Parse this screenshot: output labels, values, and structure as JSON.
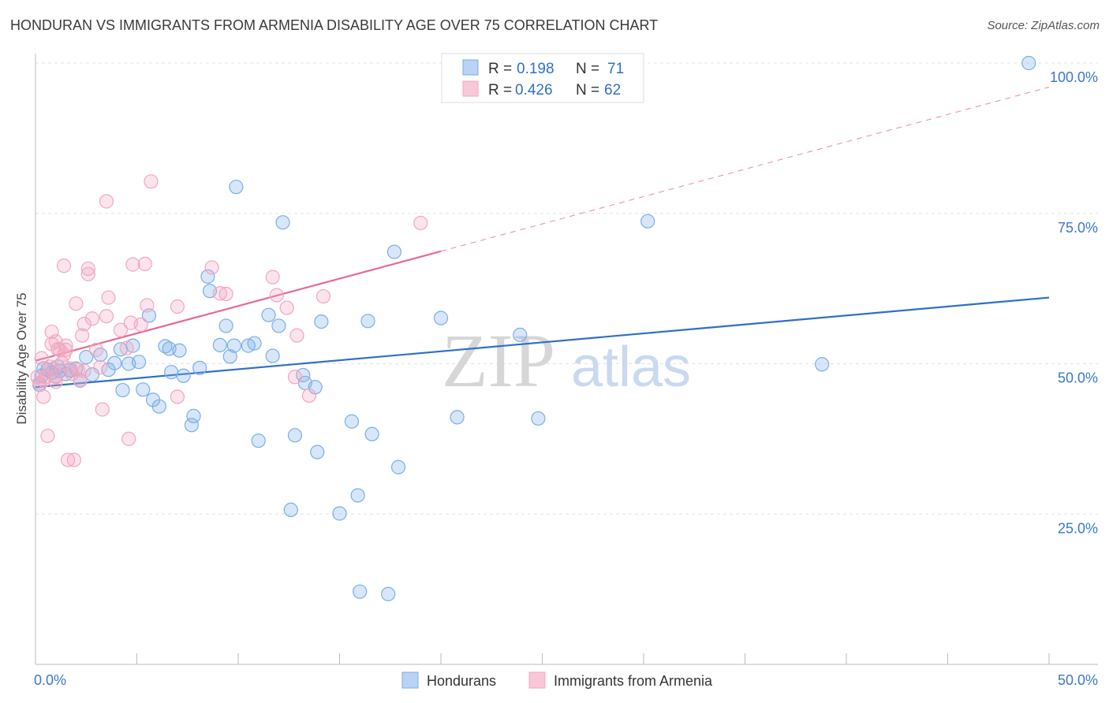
{
  "title": "HONDURAN VS IMMIGRANTS FROM ARMENIA DISABILITY AGE OVER 75 CORRELATION CHART",
  "source": "Source: ZipAtlas.com",
  "watermark": {
    "zip": "ZIP",
    "atlas": "atlas"
  },
  "stats": [
    {
      "r_label": "R =",
      "r_value": "0.198",
      "n_label": "N =",
      "n_value": "71"
    },
    {
      "r_label": "R =",
      "r_value": "0.426",
      "n_label": "N =",
      "n_value": "62"
    }
  ],
  "chart_data": {
    "type": "scatter",
    "ylabel": "Disability Age Over 75",
    "x_tick_labels": [
      "0.0%",
      "50.0%"
    ],
    "y_tick_labels": [
      "25.0%",
      "50.0%",
      "75.0%",
      "100.0%"
    ],
    "xlim": [
      0,
      50
    ],
    "ylim": [
      0,
      102
    ],
    "grid": true,
    "legend_position": "bottom",
    "series": [
      {
        "name": "Hondurans",
        "color": "#7aaee8",
        "line_color": "#2f6fc9",
        "trend": {
          "x": [
            0,
            50
          ],
          "y": [
            46.1,
            61.0
          ],
          "dashed_to": null
        },
        "points": [
          [
            0.2,
            46.5
          ],
          [
            0.3,
            48.0
          ],
          [
            0.4,
            49.2
          ],
          [
            0.6,
            49.0
          ],
          [
            0.8,
            48.5
          ],
          [
            1.0,
            47.9
          ],
          [
            1.1,
            49.5
          ],
          [
            1.2,
            48.8
          ],
          [
            1.5,
            48.3
          ],
          [
            1.7,
            48.9
          ],
          [
            2.0,
            49.2
          ],
          [
            2.2,
            47.2
          ],
          [
            2.5,
            51.1
          ],
          [
            2.8,
            48.2
          ],
          [
            3.2,
            51.5
          ],
          [
            3.6,
            49.0
          ],
          [
            3.9,
            50.1
          ],
          [
            4.2,
            52.4
          ],
          [
            4.3,
            45.6
          ],
          [
            4.6,
            50.0
          ],
          [
            4.8,
            53.0
          ],
          [
            5.1,
            50.3
          ],
          [
            5.3,
            45.7
          ],
          [
            5.6,
            58.0
          ],
          [
            5.8,
            44.0
          ],
          [
            6.1,
            42.9
          ],
          [
            6.4,
            52.9
          ],
          [
            6.6,
            52.5
          ],
          [
            6.7,
            48.6
          ],
          [
            7.1,
            52.2
          ],
          [
            7.3,
            48.0
          ],
          [
            7.7,
            39.8
          ],
          [
            7.8,
            41.3
          ],
          [
            8.1,
            49.3
          ],
          [
            8.5,
            64.5
          ],
          [
            8.6,
            62.1
          ],
          [
            9.1,
            53.1
          ],
          [
            9.4,
            56.3
          ],
          [
            9.6,
            51.2
          ],
          [
            9.8,
            53.0
          ],
          [
            9.9,
            79.4
          ],
          [
            10.5,
            53.0
          ],
          [
            10.8,
            53.4
          ],
          [
            11.0,
            37.2
          ],
          [
            11.5,
            58.1
          ],
          [
            11.7,
            51.3
          ],
          [
            12.0,
            56.3
          ],
          [
            12.2,
            73.5
          ],
          [
            12.6,
            25.7
          ],
          [
            12.8,
            38.1
          ],
          [
            13.2,
            48.1
          ],
          [
            13.3,
            46.8
          ],
          [
            13.8,
            46.1
          ],
          [
            13.9,
            35.3
          ],
          [
            14.1,
            57.0
          ],
          [
            15.0,
            25.1
          ],
          [
            15.6,
            40.4
          ],
          [
            15.9,
            28.1
          ],
          [
            16.0,
            12.1
          ],
          [
            16.4,
            57.1
          ],
          [
            16.6,
            38.3
          ],
          [
            17.4,
            11.7
          ],
          [
            17.7,
            68.6
          ],
          [
            17.9,
            32.8
          ],
          [
            20.0,
            57.6
          ],
          [
            20.8,
            41.1
          ],
          [
            23.9,
            54.8
          ],
          [
            24.8,
            40.9
          ],
          [
            30.2,
            73.7
          ],
          [
            38.8,
            49.9
          ],
          [
            49.0,
            100.0
          ]
        ]
      },
      {
        "name": "Immigrants from Armenia",
        "color": "#f3a6bf",
        "line_color": "#e56a92",
        "trend": {
          "x": [
            0,
            20
          ],
          "y": [
            50.5,
            68.7
          ],
          "dashed_to": [
            50,
            96.0
          ]
        },
        "points": [
          [
            0.1,
            47.8
          ],
          [
            0.2,
            46.8
          ],
          [
            0.3,
            50.9
          ],
          [
            0.4,
            44.5
          ],
          [
            0.5,
            47.8
          ],
          [
            0.6,
            38.0
          ],
          [
            0.7,
            49.5
          ],
          [
            0.8,
            55.3
          ],
          [
            0.8,
            53.3
          ],
          [
            0.9,
            49.2
          ],
          [
            1.0,
            47.8
          ],
          [
            1.0,
            47.0
          ],
          [
            1.0,
            53.7
          ],
          [
            1.1,
            52.4
          ],
          [
            1.2,
            52.3
          ],
          [
            1.3,
            50.1
          ],
          [
            1.4,
            66.3
          ],
          [
            1.4,
            51.5
          ],
          [
            1.5,
            52.3
          ],
          [
            1.5,
            53.0
          ],
          [
            1.6,
            34.0
          ],
          [
            1.7,
            49.2
          ],
          [
            1.9,
            34.0
          ],
          [
            2.0,
            60.0
          ],
          [
            2.1,
            49.0
          ],
          [
            2.2,
            47.3
          ],
          [
            2.3,
            54.7
          ],
          [
            2.4,
            56.6
          ],
          [
            2.6,
            65.8
          ],
          [
            2.6,
            64.9
          ],
          [
            2.8,
            57.5
          ],
          [
            3.0,
            52.3
          ],
          [
            3.2,
            49.4
          ],
          [
            3.3,
            42.4
          ],
          [
            3.5,
            57.9
          ],
          [
            3.5,
            77.0
          ],
          [
            3.6,
            61.0
          ],
          [
            4.2,
            55.6
          ],
          [
            4.5,
            52.6
          ],
          [
            4.6,
            37.5
          ],
          [
            4.7,
            56.8
          ],
          [
            4.8,
            66.5
          ],
          [
            5.2,
            56.5
          ],
          [
            5.4,
            66.6
          ],
          [
            5.5,
            59.7
          ],
          [
            5.7,
            80.3
          ],
          [
            7.0,
            59.5
          ],
          [
            7.0,
            44.5
          ],
          [
            8.7,
            66.0
          ],
          [
            9.1,
            61.7
          ],
          [
            9.4,
            61.6
          ],
          [
            11.7,
            64.4
          ],
          [
            11.9,
            61.4
          ],
          [
            12.4,
            59.3
          ],
          [
            12.9,
            54.7
          ],
          [
            13.5,
            44.7
          ],
          [
            14.2,
            61.2
          ],
          [
            19.0,
            73.4
          ],
          [
            12.8,
            47.8
          ],
          [
            1.8,
            48.3
          ],
          [
            0.4,
            47.2
          ],
          [
            2.4,
            48.8
          ]
        ]
      }
    ]
  }
}
